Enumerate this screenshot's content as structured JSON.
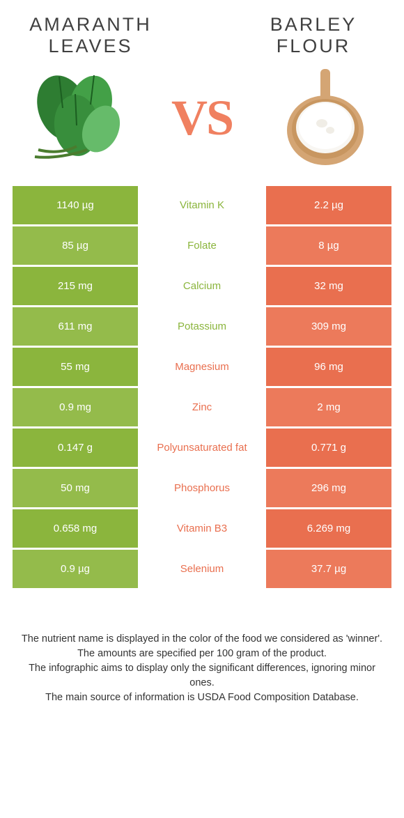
{
  "colors": {
    "left": "#8bb53d",
    "right": "#e96f4f",
    "left_alt": "#94bb4b",
    "right_alt": "#ec7a5b"
  },
  "header": {
    "left_title": "Amaranth Leaves",
    "right_title": "Barley Flour",
    "vs": "VS"
  },
  "rows": [
    {
      "nutrient": "Vitamin K",
      "left": "1140 µg",
      "right": "2.2 µg",
      "winner": "left"
    },
    {
      "nutrient": "Folate",
      "left": "85 µg",
      "right": "8 µg",
      "winner": "left"
    },
    {
      "nutrient": "Calcium",
      "left": "215 mg",
      "right": "32 mg",
      "winner": "left"
    },
    {
      "nutrient": "Potassium",
      "left": "611 mg",
      "right": "309 mg",
      "winner": "left"
    },
    {
      "nutrient": "Magnesium",
      "left": "55 mg",
      "right": "96 mg",
      "winner": "right"
    },
    {
      "nutrient": "Zinc",
      "left": "0.9 mg",
      "right": "2 mg",
      "winner": "right"
    },
    {
      "nutrient": "Polyunsaturated fat",
      "left": "0.147 g",
      "right": "0.771 g",
      "winner": "right"
    },
    {
      "nutrient": "Phosphorus",
      "left": "50 mg",
      "right": "296 mg",
      "winner": "right"
    },
    {
      "nutrient": "Vitamin B3",
      "left": "0.658 mg",
      "right": "6.269 mg",
      "winner": "right"
    },
    {
      "nutrient": "Selenium",
      "left": "0.9 µg",
      "right": "37.7 µg",
      "winner": "right"
    }
  ],
  "footnotes": [
    "The nutrient name is displayed in the color of the food we considered as 'winner'.",
    "The amounts are specified per 100 gram of the product.",
    "The infographic aims to display only the significant differences, ignoring minor ones.",
    "The main source of information is USDA Food Composition Database."
  ]
}
